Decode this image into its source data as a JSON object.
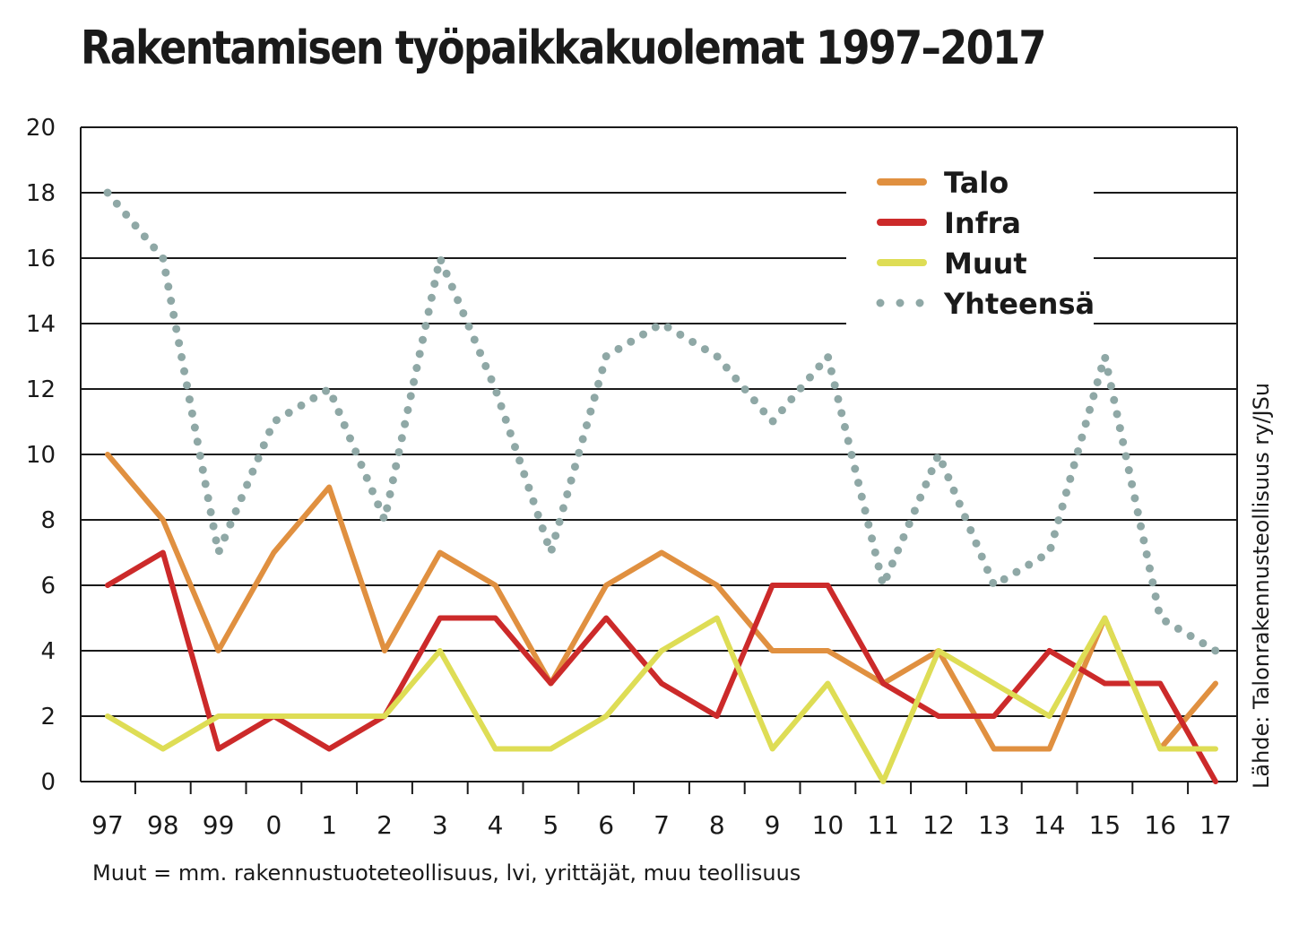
{
  "title": "Rakentamisen työpaikkakuolemat 1997–2017",
  "note": "Muut = mm. rakennustuoteteollisuus, lvi, yrittäjät, muu teollisuus",
  "source": "Lähde: Talonrakennusteollisuus ry/JSu",
  "chart_data": {
    "type": "line",
    "title": "Rakentamisen työpaikkakuolemat 1997–2017",
    "xlabel": "",
    "ylabel": "",
    "ylim": [
      0,
      20
    ],
    "yticks": [
      0,
      2,
      4,
      6,
      8,
      10,
      12,
      14,
      16,
      18,
      20
    ],
    "grid": true,
    "legend_position": "top-right",
    "categories": [
      "97",
      "98",
      "99",
      "0",
      "1",
      "2",
      "3",
      "4",
      "5",
      "6",
      "7",
      "8",
      "9",
      "10",
      "11",
      "12",
      "13",
      "14",
      "15",
      "16",
      "17"
    ],
    "series": [
      {
        "name": "Talo",
        "color": "#e09040",
        "style": "solid",
        "values": [
          10,
          8,
          4,
          7,
          9,
          4,
          7,
          6,
          3,
          6,
          7,
          6,
          4,
          4,
          3,
          4,
          1,
          1,
          5,
          1,
          3
        ]
      },
      {
        "name": "Infra",
        "color": "#cc2a2a",
        "style": "solid",
        "values": [
          6,
          7,
          1,
          2,
          1,
          2,
          5,
          5,
          3,
          5,
          3,
          2,
          6,
          6,
          3,
          2,
          2,
          4,
          3,
          3,
          0
        ]
      },
      {
        "name": "Muut",
        "color": "#dedd55",
        "style": "solid",
        "values": [
          2,
          1,
          2,
          2,
          2,
          2,
          4,
          1,
          1,
          2,
          4,
          5,
          1,
          3,
          0,
          4,
          3,
          2,
          5,
          1,
          1
        ]
      },
      {
        "name": "Yhteensä",
        "color": "#8fa8a6",
        "style": "dotted",
        "values": [
          18,
          16,
          7,
          11,
          12,
          8,
          16,
          12,
          7,
          13,
          14,
          13,
          11,
          13,
          6,
          10,
          6,
          7,
          13,
          5,
          4
        ]
      }
    ]
  }
}
